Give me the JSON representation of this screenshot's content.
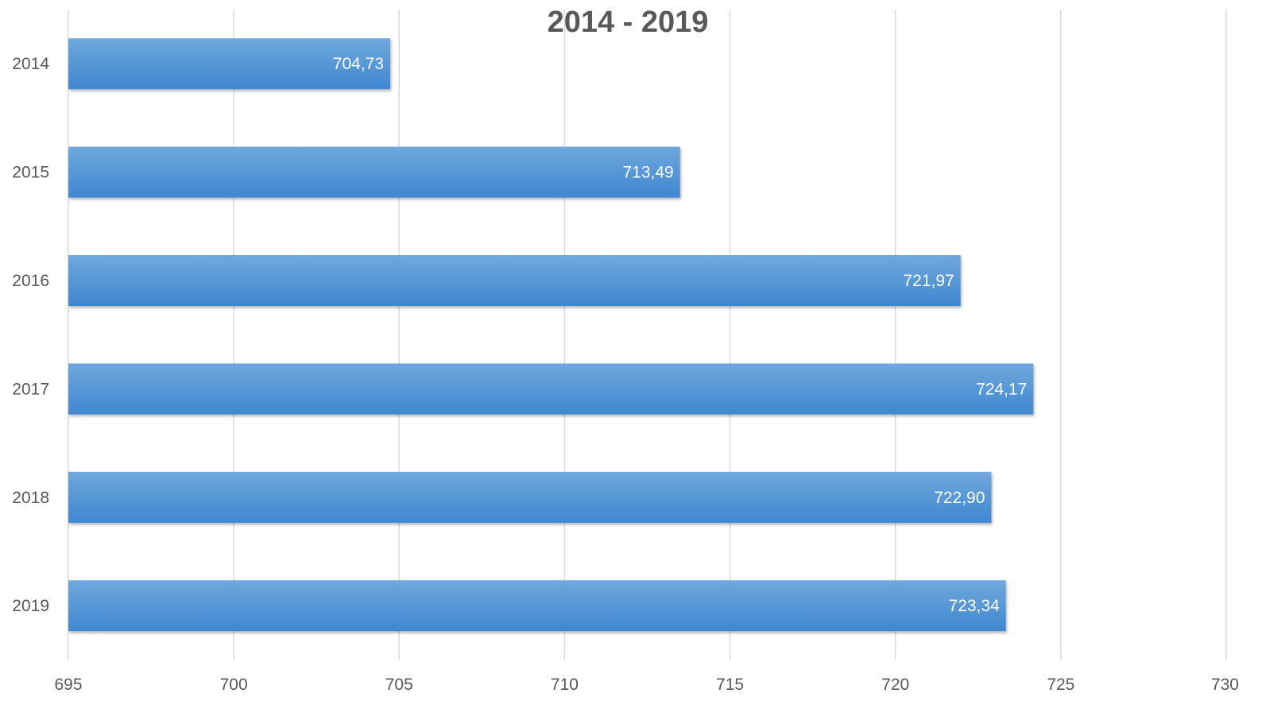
{
  "chart_data": {
    "type": "bar",
    "orientation": "horizontal",
    "title": "2014 - 2019",
    "categories": [
      "2014",
      "2015",
      "2016",
      "2017",
      "2018",
      "2019"
    ],
    "values": [
      704.73,
      713.49,
      721.97,
      724.17,
      722.9,
      723.34
    ],
    "data_labels": [
      "704,73",
      "713,49",
      "721,97",
      "724,17",
      "722,90",
      "723,34"
    ],
    "xlim": [
      695,
      730
    ],
    "x_ticks": [
      "695",
      "700",
      "705",
      "710",
      "715",
      "720",
      "725",
      "730"
    ],
    "x_tick_values": [
      695,
      700,
      705,
      710,
      715,
      720,
      725,
      730
    ],
    "xlabel": "",
    "ylabel": "",
    "grid": true,
    "legend": "none",
    "colors": {
      "bar_top": "#6fa8dc",
      "bar_bottom": "#3f87d0",
      "gridline": "#d9d9d9",
      "text": "#595959",
      "data_label": "#ffffff"
    }
  }
}
